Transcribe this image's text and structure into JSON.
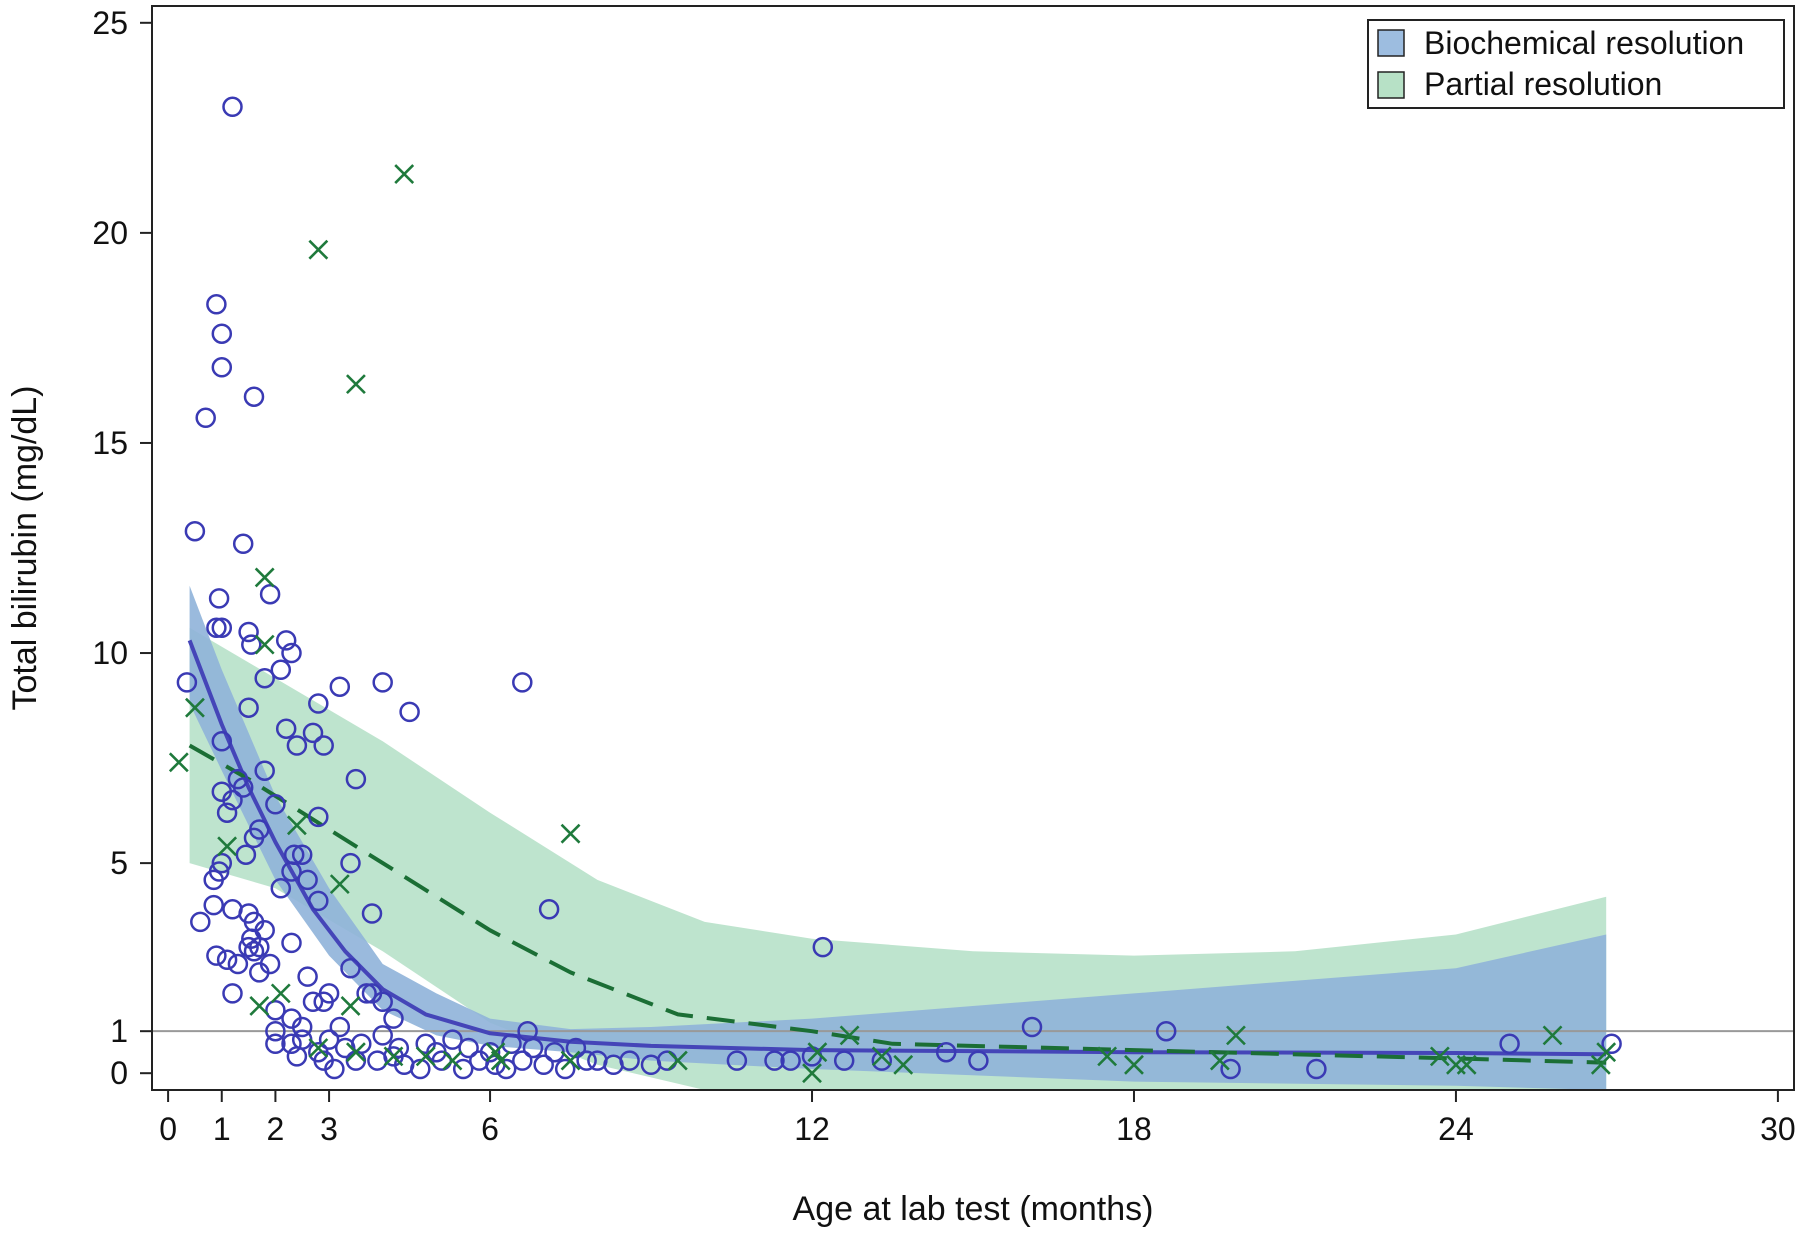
{
  "chart_data": {
    "type": "scatter",
    "xlabel": "Age at lab test (months)",
    "ylabel": "Total bilirubin (mg/dL)",
    "xlim": [
      -0.3,
      30.3
    ],
    "ylim": [
      -0.4,
      25.4
    ],
    "x_ticks": [
      0,
      1,
      2,
      3,
      6,
      12,
      18,
      24,
      30
    ],
    "y_ticks": [
      0,
      1,
      5,
      10,
      15,
      20,
      25
    ],
    "reference_line_y": 1,
    "grid": false,
    "legend_position": "top-right",
    "colors": {
      "biochemical_marker": "#3a3ab4",
      "biochemical_line": "#4545b8",
      "biochemical_band": "#8fb3d9",
      "partial_marker": "#1f7a3c",
      "partial_line": "#1b6e35",
      "partial_band": "#a8dbbd",
      "overlap_band": "#6fa7a2",
      "reference_line": "#999999"
    },
    "legend": [
      {
        "name": "Biochemical resolution",
        "color": "#9dbde0"
      },
      {
        "name": "Partial resolution",
        "color": "#b7e1c6"
      }
    ],
    "series": [
      {
        "name": "Biochemical resolution",
        "marker": "circle",
        "points": [
          [
            1.2,
            23.0
          ],
          [
            0.9,
            18.3
          ],
          [
            1.0,
            17.6
          ],
          [
            1.0,
            16.8
          ],
          [
            1.6,
            16.1
          ],
          [
            0.7,
            15.6
          ],
          [
            0.5,
            12.9
          ],
          [
            1.4,
            12.6
          ],
          [
            1.9,
            11.4
          ],
          [
            0.95,
            11.3
          ],
          [
            0.9,
            10.6
          ],
          [
            1.0,
            10.6
          ],
          [
            1.5,
            10.5
          ],
          [
            2.2,
            10.3
          ],
          [
            1.55,
            10.2
          ],
          [
            2.3,
            10.0
          ],
          [
            2.1,
            9.6
          ],
          [
            1.8,
            9.4
          ],
          [
            0.35,
            9.3
          ],
          [
            4.0,
            9.3
          ],
          [
            6.6,
            9.3
          ],
          [
            3.2,
            9.2
          ],
          [
            2.8,
            8.8
          ],
          [
            4.5,
            8.6
          ],
          [
            1.5,
            8.7
          ],
          [
            2.2,
            8.2
          ],
          [
            2.7,
            8.1
          ],
          [
            1.0,
            7.9
          ],
          [
            2.4,
            7.8
          ],
          [
            2.9,
            7.8
          ],
          [
            1.8,
            7.2
          ],
          [
            3.5,
            7.0
          ],
          [
            1.3,
            7.0
          ],
          [
            1.0,
            6.7
          ],
          [
            1.2,
            6.5
          ],
          [
            1.4,
            6.8
          ],
          [
            1.1,
            6.2
          ],
          [
            2.0,
            6.4
          ],
          [
            2.8,
            6.1
          ],
          [
            1.7,
            5.8
          ],
          [
            1.6,
            5.6
          ],
          [
            2.5,
            5.2
          ],
          [
            1.45,
            5.2
          ],
          [
            2.35,
            5.2
          ],
          [
            3.4,
            5.0
          ],
          [
            0.95,
            4.8
          ],
          [
            2.3,
            4.8
          ],
          [
            1.0,
            5.0
          ],
          [
            0.85,
            4.6
          ],
          [
            2.1,
            4.4
          ],
          [
            2.6,
            4.6
          ],
          [
            0.85,
            4.0
          ],
          [
            2.8,
            4.1
          ],
          [
            7.1,
            3.9
          ],
          [
            1.2,
            3.9
          ],
          [
            1.5,
            3.8
          ],
          [
            3.8,
            3.8
          ],
          [
            1.6,
            3.6
          ],
          [
            0.6,
            3.6
          ],
          [
            1.8,
            3.4
          ],
          [
            1.55,
            3.2
          ],
          [
            2.3,
            3.1
          ],
          [
            1.5,
            3.0
          ],
          [
            1.7,
            3.0
          ],
          [
            1.6,
            2.9
          ],
          [
            0.9,
            2.8
          ],
          [
            12.2,
            3.0
          ],
          [
            1.1,
            2.7
          ],
          [
            1.3,
            2.6
          ],
          [
            1.9,
            2.6
          ],
          [
            1.7,
            2.4
          ],
          [
            3.4,
            2.5
          ],
          [
            2.6,
            2.3
          ],
          [
            1.2,
            1.9
          ],
          [
            3.0,
            1.9
          ],
          [
            3.7,
            1.9
          ],
          [
            4.0,
            1.7
          ],
          [
            3.8,
            1.9
          ],
          [
            2.7,
            1.7
          ],
          [
            2.9,
            1.7
          ],
          [
            2.0,
            1.5
          ],
          [
            4.2,
            1.3
          ],
          [
            2.3,
            1.3
          ],
          [
            2.5,
            1.1
          ],
          [
            3.2,
            1.1
          ],
          [
            2.0,
            1.0
          ],
          [
            6.7,
            1.0
          ],
          [
            16.1,
            1.1
          ],
          [
            18.6,
            1.0
          ],
          [
            2.0,
            0.7
          ],
          [
            2.3,
            0.7
          ],
          [
            2.5,
            0.8
          ],
          [
            2.8,
            0.5
          ],
          [
            3.0,
            0.8
          ],
          [
            3.3,
            0.6
          ],
          [
            3.6,
            0.7
          ],
          [
            4.0,
            0.9
          ],
          [
            4.3,
            0.6
          ],
          [
            4.8,
            0.7
          ],
          [
            5.0,
            0.5
          ],
          [
            5.3,
            0.8
          ],
          [
            5.6,
            0.6
          ],
          [
            6.0,
            0.5
          ],
          [
            6.4,
            0.7
          ],
          [
            6.8,
            0.6
          ],
          [
            7.2,
            0.5
          ],
          [
            7.6,
            0.6
          ],
          [
            8.0,
            0.3
          ],
          [
            8.6,
            0.3
          ],
          [
            9.0,
            0.2
          ],
          [
            9.3,
            0.3
          ],
          [
            10.6,
            0.3
          ],
          [
            11.3,
            0.3
          ],
          [
            11.6,
            0.3
          ],
          [
            12.0,
            0.4
          ],
          [
            12.6,
            0.3
          ],
          [
            13.3,
            0.3
          ],
          [
            14.5,
            0.5
          ],
          [
            15.1,
            0.3
          ],
          [
            19.8,
            0.1
          ],
          [
            21.4,
            0.1
          ],
          [
            25.0,
            0.7
          ],
          [
            26.9,
            0.7
          ],
          [
            2.4,
            0.4
          ],
          [
            2.9,
            0.3
          ],
          [
            3.1,
            0.1
          ],
          [
            3.5,
            0.3
          ],
          [
            3.9,
            0.3
          ],
          [
            4.2,
            0.4
          ],
          [
            4.4,
            0.2
          ],
          [
            4.7,
            0.1
          ],
          [
            5.1,
            0.3
          ],
          [
            5.5,
            0.1
          ],
          [
            5.8,
            0.3
          ],
          [
            6.1,
            0.2
          ],
          [
            6.3,
            0.1
          ],
          [
            6.6,
            0.3
          ],
          [
            7.0,
            0.2
          ],
          [
            7.4,
            0.1
          ],
          [
            7.8,
            0.3
          ],
          [
            8.3,
            0.2
          ]
        ]
      },
      {
        "name": "Partial resolution",
        "marker": "x",
        "points": [
          [
            4.4,
            21.4
          ],
          [
            2.8,
            19.6
          ],
          [
            3.5,
            16.4
          ],
          [
            1.8,
            11.8
          ],
          [
            1.8,
            10.2
          ],
          [
            0.5,
            8.7
          ],
          [
            0.2,
            7.4
          ],
          [
            2.4,
            5.9
          ],
          [
            7.5,
            5.7
          ],
          [
            1.1,
            5.4
          ],
          [
            3.2,
            4.5
          ],
          [
            2.1,
            1.9
          ],
          [
            3.4,
            1.6
          ],
          [
            1.7,
            1.6
          ],
          [
            12.7,
            0.9
          ],
          [
            19.9,
            0.9
          ],
          [
            25.8,
            0.9
          ],
          [
            2.8,
            0.6
          ],
          [
            3.5,
            0.5
          ],
          [
            4.8,
            0.4
          ],
          [
            5.3,
            0.3
          ],
          [
            6.2,
            0.3
          ],
          [
            7.5,
            0.3
          ],
          [
            9.5,
            0.3
          ],
          [
            12.1,
            0.5
          ],
          [
            13.3,
            0.4
          ],
          [
            13.7,
            0.2
          ],
          [
            17.5,
            0.4
          ],
          [
            18.0,
            0.2
          ],
          [
            19.6,
            0.3
          ],
          [
            23.7,
            0.4
          ],
          [
            24.0,
            0.2
          ],
          [
            24.2,
            0.2
          ],
          [
            26.7,
            0.2
          ],
          [
            12.0,
            0.0
          ],
          [
            6.1,
            0.5
          ],
          [
            4.2,
            0.4
          ],
          [
            26.8,
            0.5
          ]
        ]
      }
    ],
    "fit_lines": [
      {
        "name": "Biochemical resolution",
        "style": "solid",
        "x": [
          0.4,
          1.0,
          1.5,
          2.0,
          2.7,
          3.3,
          4.0,
          4.8,
          6.0,
          7.5,
          9.0,
          12.0,
          18.0,
          24.0,
          26.8
        ],
        "y": [
          10.3,
          8.3,
          6.8,
          5.5,
          3.9,
          2.9,
          2.0,
          1.4,
          0.95,
          0.75,
          0.65,
          0.55,
          0.5,
          0.48,
          0.45
        ]
      },
      {
        "name": "Partial resolution",
        "style": "dashed",
        "x": [
          0.4,
          1.5,
          3.0,
          4.5,
          6.0,
          7.5,
          9.5,
          12.0,
          13.5,
          18.0,
          24.0,
          26.8
        ],
        "y": [
          7.8,
          7.0,
          5.8,
          4.6,
          3.4,
          2.4,
          1.4,
          1.0,
          0.7,
          0.55,
          0.35,
          0.25
        ]
      }
    ],
    "confidence_bands": [
      {
        "name": "Biochemical resolution",
        "x": [
          0.4,
          1.0,
          2.0,
          3.0,
          4.0,
          5.0,
          6.0,
          7.5,
          9.0,
          12.0,
          18.0,
          24.0,
          26.8
        ],
        "lower": [
          8.8,
          7.2,
          4.6,
          2.8,
          1.5,
          0.9,
          0.65,
          0.5,
          0.3,
          0.1,
          -0.2,
          -0.3,
          -0.4
        ],
        "upper": [
          11.6,
          9.6,
          6.6,
          4.4,
          2.6,
          1.9,
          1.3,
          1.05,
          1.1,
          1.3,
          1.9,
          2.5,
          3.3
        ]
      },
      {
        "name": "Partial resolution",
        "x": [
          0.4,
          2.0,
          4.0,
          6.0,
          8.0,
          10.0,
          12.0,
          15.0,
          18.0,
          21.0,
          24.0,
          26.8
        ],
        "lower": [
          5.0,
          4.4,
          2.9,
          1.2,
          0.2,
          -0.4,
          -0.4,
          -0.4,
          -0.4,
          -0.4,
          -0.4,
          -0.4
        ],
        "upper": [
          10.6,
          9.4,
          7.9,
          6.2,
          4.6,
          3.6,
          3.2,
          2.9,
          2.8,
          2.9,
          3.3,
          4.2
        ]
      }
    ]
  }
}
